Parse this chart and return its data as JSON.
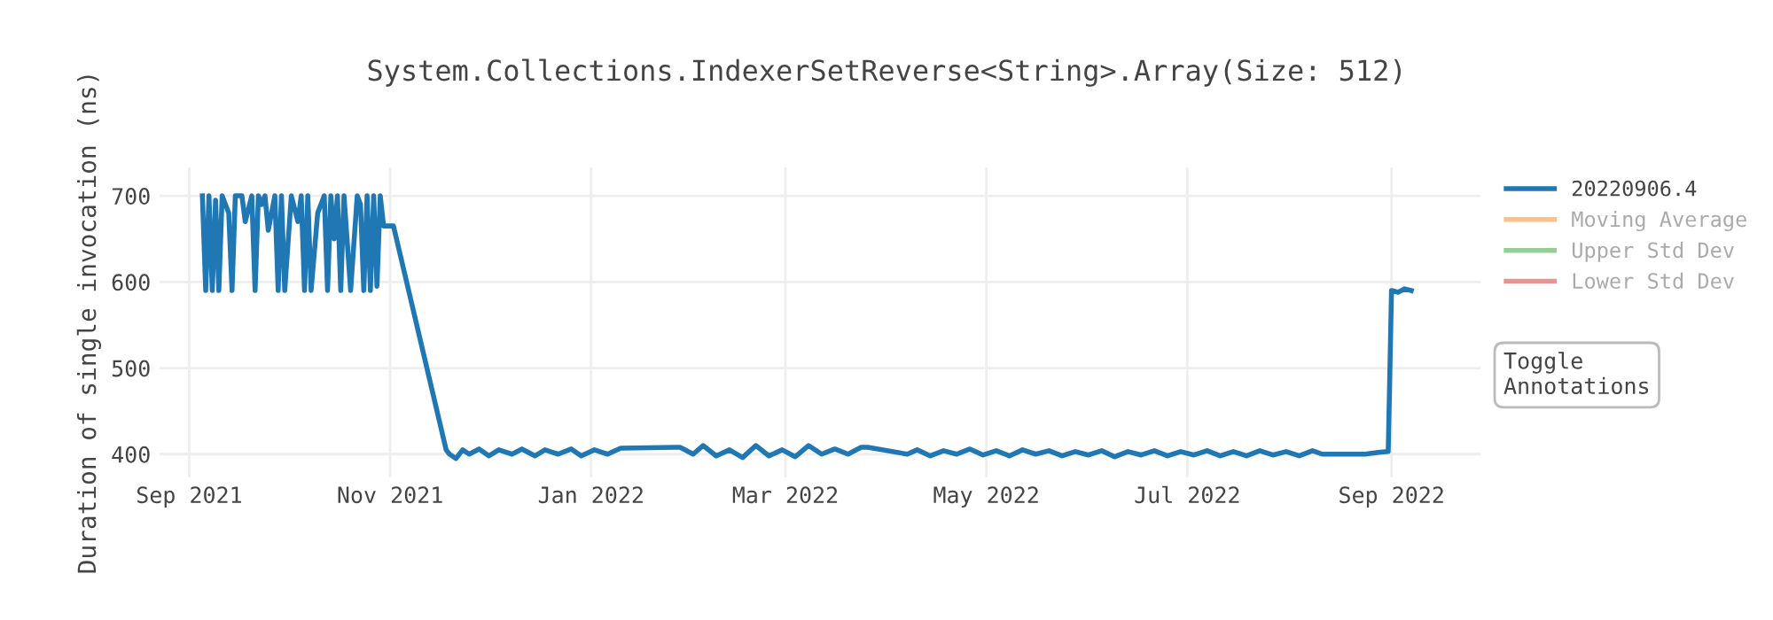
{
  "chart_data": {
    "type": "line",
    "title": "System.Collections.IndexerSetReverse<String>.Array(Size: 512)",
    "ylabel": "Duration of single invocation (ns)",
    "x": [
      "2021-09-05",
      "2021-09-06",
      "2021-09-07",
      "2021-09-08",
      "2021-09-09",
      "2021-09-10",
      "2021-09-11",
      "2021-09-13",
      "2021-09-14",
      "2021-09-15",
      "2021-09-17",
      "2021-09-18",
      "2021-09-20",
      "2021-09-21",
      "2021-09-22",
      "2021-09-23",
      "2021-09-24",
      "2021-09-25",
      "2021-09-27",
      "2021-09-28",
      "2021-09-29",
      "2021-09-30",
      "2021-10-02",
      "2021-10-04",
      "2021-10-05",
      "2021-10-06",
      "2021-10-07",
      "2021-10-08",
      "2021-10-10",
      "2021-10-12",
      "2021-10-13",
      "2021-10-14",
      "2021-10-15",
      "2021-10-16",
      "2021-10-17",
      "2021-10-18",
      "2021-10-20",
      "2021-10-22",
      "2021-10-23",
      "2021-10-24",
      "2021-10-25",
      "2021-10-26",
      "2021-10-27",
      "2021-10-28",
      "2021-10-29",
      "2021-10-30",
      "2021-11-02",
      "2021-11-18",
      "2021-11-19",
      "2021-11-21",
      "2021-11-23",
      "2021-11-25",
      "2021-11-28",
      "2021-12-01",
      "2021-12-04",
      "2021-12-08",
      "2021-12-11",
      "2021-12-15",
      "2021-12-18",
      "2021-12-22",
      "2021-12-26",
      "2021-12-29",
      "2022-01-02",
      "2022-01-06",
      "2022-01-10",
      "2022-01-28",
      "2022-02-01",
      "2022-02-04",
      "2022-02-08",
      "2022-02-12",
      "2022-02-16",
      "2022-02-20",
      "2022-02-24",
      "2022-02-28",
      "2022-03-04",
      "2022-03-08",
      "2022-03-12",
      "2022-03-16",
      "2022-03-20",
      "2022-03-24",
      "2022-03-26",
      "2022-04-07",
      "2022-04-10",
      "2022-04-14",
      "2022-04-18",
      "2022-04-22",
      "2022-04-26",
      "2022-04-30",
      "2022-05-04",
      "2022-05-08",
      "2022-05-12",
      "2022-05-16",
      "2022-05-20",
      "2022-05-24",
      "2022-05-28",
      "2022-06-01",
      "2022-06-05",
      "2022-06-09",
      "2022-06-13",
      "2022-06-17",
      "2022-06-21",
      "2022-06-25",
      "2022-06-29",
      "2022-07-03",
      "2022-07-07",
      "2022-07-11",
      "2022-07-15",
      "2022-07-19",
      "2022-07-23",
      "2022-07-27",
      "2022-07-31",
      "2022-08-04",
      "2022-08-08",
      "2022-08-11",
      "2022-08-24",
      "2022-08-28",
      "2022-08-31",
      "2022-09-01",
      "2022-09-03",
      "2022-09-05",
      "2022-09-07"
    ],
    "series": [
      {
        "name": "20220906.4",
        "color": "#1f77b4",
        "values": [
          700,
          590,
          700,
          590,
          695,
          590,
          700,
          680,
          590,
          700,
          700,
          670,
          700,
          590,
          700,
          690,
          700,
          660,
          700,
          590,
          700,
          590,
          700,
          670,
          700,
          590,
          700,
          590,
          680,
          700,
          590,
          700,
          650,
          700,
          590,
          700,
          590,
          700,
          690,
          590,
          700,
          590,
          700,
          595,
          700,
          665,
          665,
          405,
          400,
          395,
          405,
          400,
          406,
          398,
          405,
          400,
          406,
          398,
          405,
          400,
          406,
          398,
          405,
          400,
          407,
          408,
          400,
          410,
          398,
          405,
          396,
          410,
          398,
          405,
          397,
          410,
          400,
          406,
          400,
          408,
          408,
          400,
          405,
          398,
          404,
          400,
          406,
          399,
          404,
          398,
          405,
          400,
          404,
          398,
          403,
          399,
          404,
          397,
          403,
          399,
          404,
          398,
          403,
          399,
          404,
          398,
          403,
          398,
          404,
          399,
          403,
          398,
          404,
          400,
          400,
          402,
          403,
          590,
          588,
          592,
          590
        ]
      },
      {
        "name": "Moving Average",
        "color": "#ff7f0e",
        "values": [
          null,
          null,
          null,
          null,
          null,
          null,
          null,
          null,
          null,
          null,
          null,
          null,
          null,
          null,
          null,
          null,
          null,
          null,
          null,
          null,
          null,
          null,
          null,
          null,
          null,
          null,
          null,
          null,
          null,
          null,
          null,
          null,
          null,
          null,
          null,
          null,
          null,
          null,
          null,
          null,
          null,
          null,
          null,
          null,
          null,
          null,
          null,
          null,
          null,
          null,
          null,
          null,
          null,
          null,
          null,
          null,
          null,
          null,
          null,
          null,
          null,
          null,
          null,
          null,
          null,
          null,
          null,
          null,
          null,
          null,
          null,
          null,
          null,
          null,
          null,
          null,
          null,
          null,
          null,
          null,
          null,
          null,
          null,
          null,
          null,
          null,
          null,
          null,
          null,
          null,
          null,
          null,
          null,
          null,
          null,
          null,
          null,
          null,
          null,
          null,
          null,
          null,
          null,
          null,
          null,
          null,
          null,
          null,
          null,
          null,
          null,
          null,
          null,
          null,
          null,
          null,
          null,
          null,
          null,
          null,
          null
        ]
      },
      {
        "name": "Upper Std Dev",
        "color": "#2ca02c",
        "values": [
          null,
          null,
          null,
          null,
          null,
          null,
          null,
          null,
          null,
          null,
          null,
          null,
          null,
          null,
          null,
          null,
          null,
          null,
          null,
          null,
          null,
          null,
          null,
          null,
          null,
          null,
          null,
          null,
          null,
          null,
          null,
          null,
          null,
          null,
          null,
          null,
          null,
          null,
          null,
          null,
          null,
          null,
          null,
          null,
          null,
          null,
          null,
          null,
          null,
          null,
          null,
          null,
          null,
          null,
          null,
          null,
          null,
          null,
          null,
          null,
          null,
          null,
          null,
          null,
          null,
          null,
          null,
          null,
          null,
          null,
          null,
          null,
          null,
          null,
          null,
          null,
          null,
          null,
          null,
          null,
          null,
          null,
          null,
          null,
          null,
          null,
          null,
          null,
          null,
          null,
          null,
          null,
          null,
          null,
          null,
          null,
          null,
          null,
          null,
          null,
          null,
          null,
          null,
          null,
          null,
          null,
          null,
          null,
          null,
          null,
          null,
          null,
          null,
          null,
          null,
          null,
          null,
          null,
          null,
          null,
          null
        ]
      },
      {
        "name": "Lower Std Dev",
        "color": "#d62728",
        "values": [
          null,
          null,
          null,
          null,
          null,
          null,
          null,
          null,
          null,
          null,
          null,
          null,
          null,
          null,
          null,
          null,
          null,
          null,
          null,
          null,
          null,
          null,
          null,
          null,
          null,
          null,
          null,
          null,
          null,
          null,
          null,
          null,
          null,
          null,
          null,
          null,
          null,
          null,
          null,
          null,
          null,
          null,
          null,
          null,
          null,
          null,
          null,
          null,
          null,
          null,
          null,
          null,
          null,
          null,
          null,
          null,
          null,
          null,
          null,
          null,
          null,
          null,
          null,
          null,
          null,
          null,
          null,
          null,
          null,
          null,
          null,
          null,
          null,
          null,
          null,
          null,
          null,
          null,
          null,
          null,
          null,
          null,
          null,
          null,
          null,
          null,
          null,
          null,
          null,
          null,
          null,
          null,
          null,
          null,
          null,
          null,
          null,
          null,
          null,
          null,
          null,
          null,
          null,
          null,
          null,
          null,
          null,
          null,
          null,
          null,
          null,
          null,
          null,
          null,
          null,
          null,
          null,
          null,
          null,
          null,
          null
        ]
      }
    ],
    "xlim": [
      "2021-08-23",
      "2022-09-28"
    ],
    "xticks": [
      {
        "value": "2021-09-01",
        "label": "Sep 2021"
      },
      {
        "value": "2021-11-01",
        "label": "Nov 2021"
      },
      {
        "value": "2022-01-01",
        "label": "Jan 2022"
      },
      {
        "value": "2022-03-01",
        "label": "Mar 2022"
      },
      {
        "value": "2022-05-01",
        "label": "May 2022"
      },
      {
        "value": "2022-07-01",
        "label": "Jul 2022"
      },
      {
        "value": "2022-09-01",
        "label": "Sep 2022"
      }
    ],
    "ylim": [
      373,
      733
    ],
    "yticks": [
      400,
      500,
      600,
      700
    ],
    "grid": true,
    "legend": "right",
    "annotations": [
      "Toggle Annotations"
    ]
  }
}
